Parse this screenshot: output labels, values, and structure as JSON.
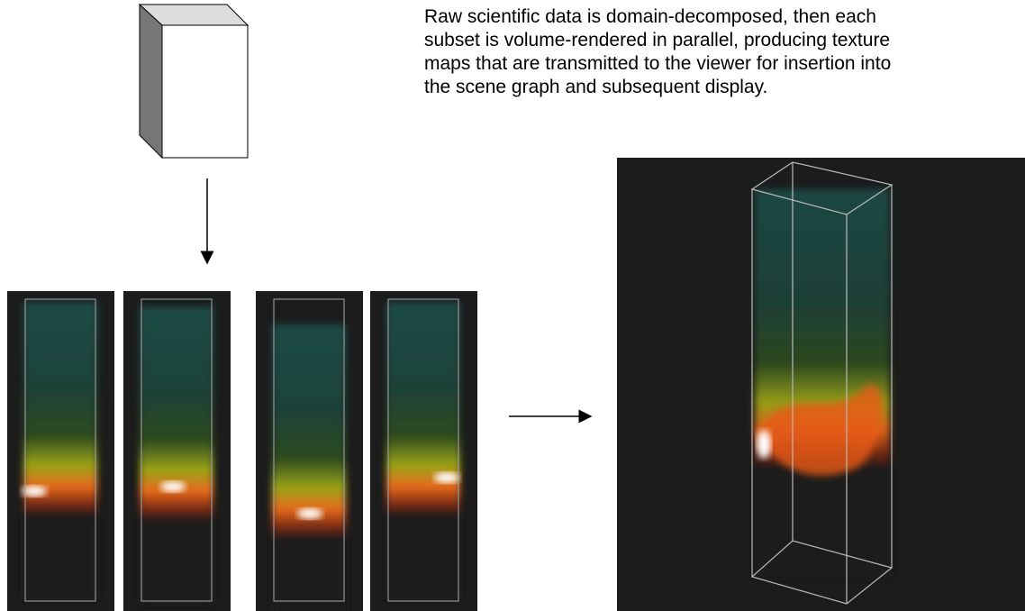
{
  "caption": {
    "lines": [
      "Raw scientific data is domain-decomposed, then each",
      "subset is volume-rendered in parallel, producing texture",
      "maps that are transmitted to the viewer for insertion into",
      "the scene graph and subsequent display."
    ]
  }
}
